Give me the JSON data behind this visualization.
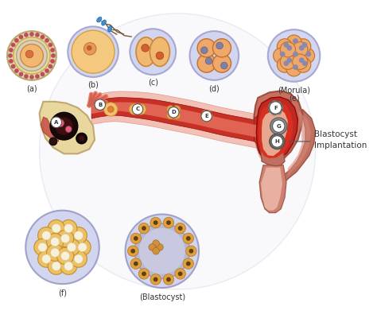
{
  "background_color": "#ffffff",
  "labels": {
    "a": "(a)",
    "b": "(b)",
    "c": "(c)",
    "d": "(d)",
    "e": "(e)",
    "f": "(f)",
    "morula": "(Morula)",
    "blastocyst_label": "(Blastocyst)",
    "blastocyst_implantation": "Blastocyst\nImplantation"
  },
  "figsize": [
    4.74,
    4.05
  ],
  "dpi": 100
}
